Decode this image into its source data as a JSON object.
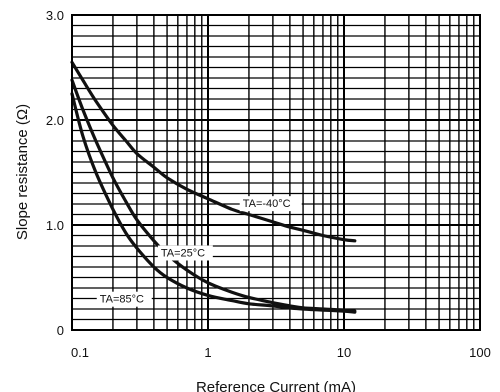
{
  "chart_data": {
    "type": "line",
    "xscale": "log",
    "xlim": [
      0.1,
      100
    ],
    "ylim": [
      0,
      3
    ],
    "xlabel": "Reference Current (mA)",
    "ylabel": "Slope resistance (Ω)",
    "grid": true,
    "x_ticks": [
      0.1,
      1,
      10,
      100
    ],
    "x_tick_labels": [
      "0.1",
      "1",
      "10",
      "100"
    ],
    "y_ticks": [
      0,
      1,
      2,
      3
    ],
    "y_tick_labels": [
      "0",
      "1.0",
      "2.0",
      "3.0"
    ],
    "series": [
      {
        "name": "TA=-40°C",
        "x": [
          0.1,
          0.12,
          0.15,
          0.2,
          0.25,
          0.3,
          0.4,
          0.5,
          0.7,
          1,
          1.5,
          2,
          3,
          4,
          5,
          7,
          10,
          12
        ],
        "y": [
          2.55,
          2.38,
          2.18,
          1.95,
          1.8,
          1.68,
          1.55,
          1.45,
          1.34,
          1.25,
          1.15,
          1.1,
          1.03,
          0.98,
          0.95,
          0.9,
          0.86,
          0.85
        ],
        "label_text": "TA=-40°C",
        "label_at": [
          1.8,
          1.17
        ]
      },
      {
        "name": "TA=25°C",
        "x": [
          0.1,
          0.12,
          0.15,
          0.2,
          0.25,
          0.3,
          0.4,
          0.5,
          0.7,
          1,
          1.5,
          2,
          3,
          4,
          5,
          7,
          10,
          12
        ],
        "y": [
          2.38,
          2.1,
          1.8,
          1.45,
          1.22,
          1.05,
          0.85,
          0.72,
          0.57,
          0.45,
          0.36,
          0.31,
          0.26,
          0.23,
          0.21,
          0.2,
          0.19,
          0.18
        ],
        "label_text": "TA=25°C",
        "label_at": [
          0.45,
          0.7
        ]
      },
      {
        "name": "TA=85°C",
        "x": [
          0.1,
          0.12,
          0.15,
          0.2,
          0.25,
          0.3,
          0.4,
          0.5,
          0.7,
          1,
          1.5,
          2,
          3,
          4,
          5,
          7,
          10,
          12
        ],
        "y": [
          2.25,
          1.85,
          1.5,
          1.15,
          0.92,
          0.78,
          0.6,
          0.5,
          0.4,
          0.33,
          0.28,
          0.25,
          0.23,
          0.21,
          0.2,
          0.19,
          0.18,
          0.17
        ],
        "label_text": "TA=85°C",
        "label_at": [
          0.16,
          0.26
        ]
      }
    ]
  }
}
